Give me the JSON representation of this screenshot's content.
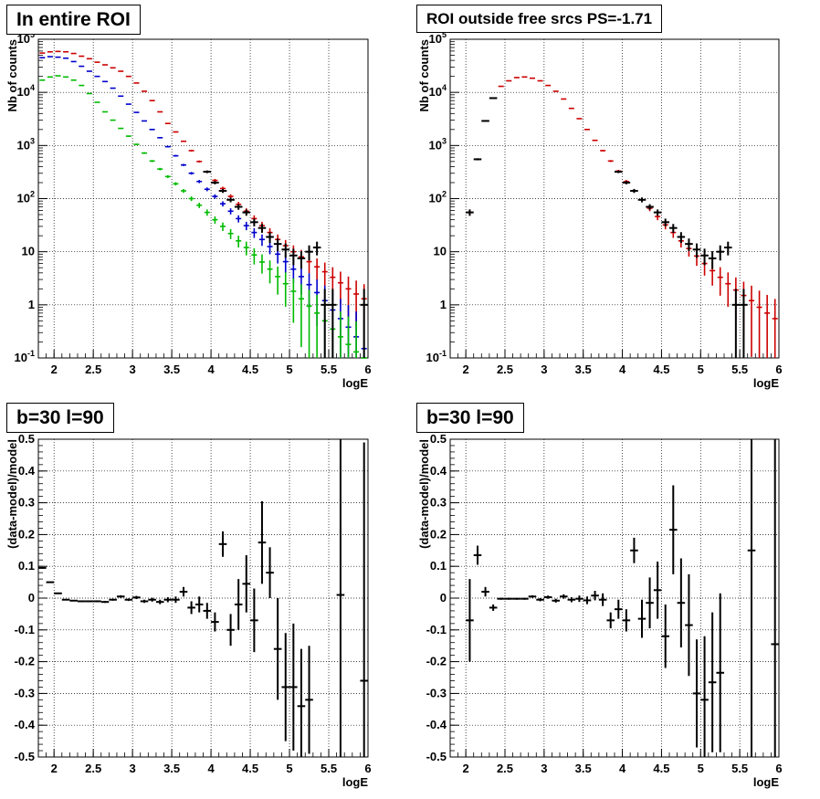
{
  "chart_data": [
    {
      "type": "scatter",
      "title": "In entire ROI",
      "xlabel": "logE",
      "ylabel": "Nb of counts",
      "xlim": [
        1.8,
        6.0
      ],
      "ylim": [
        0.1,
        100000
      ],
      "log_y": true,
      "grid": true,
      "x_ticks": [
        "2",
        "2.5",
        "3",
        "3.5",
        "4",
        "4.5",
        "5",
        "5.5",
        "6"
      ],
      "y_ticks": [
        "10^-1",
        "1",
        "10",
        "10^2",
        "10^3",
        "10^4",
        "10^5"
      ],
      "series": [
        {
          "color": "#cc0000",
          "x": [
            1.85,
            1.95,
            2.05,
            2.15,
            2.25,
            2.35,
            2.45,
            2.55,
            2.65,
            2.75,
            2.85,
            2.95,
            3.05,
            3.15,
            3.25,
            3.35,
            3.45,
            3.55,
            3.65,
            3.75,
            3.85,
            3.95,
            4.05,
            4.15,
            4.25,
            4.35,
            4.45,
            4.55,
            4.65,
            4.75,
            4.85,
            4.95,
            5.05,
            5.15,
            5.25,
            5.35,
            5.45,
            5.55,
            5.65,
            5.75,
            5.85,
            5.95
          ],
          "y": [
            55000,
            58000,
            59000,
            58000,
            54000,
            48000,
            43000,
            37000,
            33000,
            29000,
            25000,
            20000,
            15000,
            10500,
            7000,
            4300,
            2600,
            1800,
            1200,
            800,
            500,
            320,
            220,
            155,
            110,
            78,
            58,
            42,
            31,
            23,
            17,
            13,
            10,
            8,
            6.5,
            5.2,
            4.2,
            3.3,
            2.6,
            2,
            1.6,
            1.3
          ]
        },
        {
          "color": "#0000cc",
          "x": [
            1.85,
            1.95,
            2.05,
            2.15,
            2.25,
            2.35,
            2.45,
            2.55,
            2.65,
            2.75,
            2.85,
            2.95,
            3.05,
            3.15,
            3.25,
            3.35,
            3.45,
            3.55,
            3.65,
            3.75,
            3.85,
            3.95,
            4.05,
            4.15,
            4.25,
            4.35,
            4.45,
            4.55,
            4.65,
            4.75,
            4.85,
            4.95,
            5.05,
            5.15,
            5.25,
            5.35,
            5.45,
            5.55,
            5.65,
            5.75,
            5.85,
            5.95
          ],
          "y": [
            45000,
            47000,
            46000,
            44000,
            38000,
            31000,
            25000,
            20000,
            16000,
            12000,
            8500,
            6000,
            4200,
            2900,
            2000,
            1400,
            950,
            640,
            430,
            300,
            210,
            150,
            110,
            80,
            58,
            42,
            31,
            23,
            17,
            12.5,
            9,
            6.5,
            4.7,
            3.4,
            2.4,
            1.7,
            1.2,
            0.8,
            0.55,
            0.38,
            0.25,
            0.15
          ]
        },
        {
          "color": "#00bb00",
          "x": [
            1.85,
            1.95,
            2.05,
            2.15,
            2.25,
            2.35,
            2.45,
            2.55,
            2.65,
            2.75,
            2.85,
            2.95,
            3.05,
            3.15,
            3.25,
            3.35,
            3.45,
            3.55,
            3.65,
            3.75,
            3.85,
            3.95,
            4.05,
            4.15,
            4.25,
            4.35,
            4.45,
            4.55,
            4.65,
            4.75,
            4.85,
            4.95,
            5.05,
            5.15,
            5.25,
            5.35,
            5.45,
            5.55,
            5.65,
            5.75,
            5.85,
            5.95
          ],
          "y": [
            17000,
            19500,
            20500,
            19500,
            17000,
            13500,
            9500,
            6500,
            4300,
            3000,
            2100,
            1500,
            1050,
            720,
            510,
            360,
            260,
            190,
            140,
            100,
            75,
            55,
            40,
            30,
            22,
            16,
            12,
            8.7,
            6.4,
            4.7,
            3.4,
            2.5,
            1.8,
            1.3,
            0.95,
            0.7,
            0.5,
            0.35,
            0.25,
            0.18,
            0.13,
            0.1
          ]
        },
        {
          "color": "#000000",
          "x": [
            3.95,
            4.05,
            4.15,
            4.25,
            4.35,
            4.45,
            4.55,
            4.65,
            4.75,
            4.85,
            4.95,
            5.05,
            5.15,
            5.25,
            5.35,
            5.45,
            5.55,
            5.95
          ],
          "y": [
            320,
            200,
            140,
            95,
            70,
            55,
            36,
            28,
            19,
            14,
            11,
            8.5,
            7.5,
            10,
            12,
            1,
            1,
            1
          ]
        }
      ]
    },
    {
      "type": "scatter",
      "title": "ROI outside free srcs PS=-1.71",
      "xlabel": "logE",
      "ylabel": "Nb of counts",
      "xlim": [
        1.8,
        6.0
      ],
      "ylim": [
        0.1,
        100000
      ],
      "log_y": true,
      "grid": true,
      "x_ticks": [
        "2",
        "2.5",
        "3",
        "3.5",
        "4",
        "4.5",
        "5",
        "5.5",
        "6"
      ],
      "y_ticks": [
        "10^-1",
        "1",
        "10",
        "10^2",
        "10^3",
        "10^4",
        "10^5"
      ],
      "series": [
        {
          "color": "#cc0000",
          "x": [
            2.05,
            2.15,
            2.25,
            2.35,
            2.45,
            2.55,
            2.65,
            2.75,
            2.85,
            2.95,
            3.05,
            3.15,
            3.25,
            3.35,
            3.45,
            3.55,
            3.65,
            3.75,
            3.85,
            3.95,
            4.05,
            4.15,
            4.25,
            4.35,
            4.45,
            4.55,
            4.65,
            4.75,
            4.85,
            4.95,
            5.05,
            5.15,
            5.25,
            5.35,
            5.45,
            5.55,
            5.65,
            5.75,
            5.85,
            5.95
          ],
          "y": [
            55,
            550,
            2900,
            7800,
            13000,
            16500,
            19000,
            19500,
            18500,
            16500,
            13500,
            10500,
            7500,
            5000,
            3200,
            2000,
            1250,
            800,
            510,
            330,
            210,
            140,
            95,
            66,
            46,
            32,
            23,
            16,
            11.5,
            8.3,
            6,
            4.4,
            3.3,
            2.5,
            1.9,
            1.5,
            1.2,
            0.9,
            0.7,
            0.55
          ]
        },
        {
          "color": "#000000",
          "x": [
            2.05,
            2.15,
            2.25,
            2.35,
            3.95,
            4.05,
            4.15,
            4.25,
            4.35,
            4.45,
            4.55,
            4.65,
            4.75,
            4.85,
            4.95,
            5.05,
            5.15,
            5.25,
            5.35,
            5.45,
            5.55
          ],
          "y": [
            55,
            550,
            2900,
            7800,
            320,
            200,
            140,
            95,
            70,
            55,
            36,
            28,
            19,
            14,
            11,
            8.5,
            7.5,
            10,
            12,
            1,
            1
          ]
        }
      ]
    },
    {
      "type": "scatter",
      "title": "b=30 l=90",
      "xlabel": "logE",
      "ylabel": "(data-model)/model",
      "xlim": [
        1.8,
        6.0
      ],
      "ylim": [
        -0.5,
        0.5
      ],
      "grid": true,
      "x_ticks": [
        "2",
        "2.5",
        "3",
        "3.5",
        "4",
        "4.5",
        "5",
        "5.5",
        "6"
      ],
      "y_ticks": [
        "-0.5",
        "-0.4",
        "-0.3",
        "-0.2",
        "-0.1",
        "0",
        "0.1",
        "0.2",
        "0.3",
        "0.4",
        "0.5"
      ],
      "series": [
        {
          "color": "#000000",
          "x": [
            1.85,
            1.95,
            2.05,
            2.15,
            2.25,
            2.35,
            2.45,
            2.55,
            2.65,
            2.75,
            2.85,
            2.95,
            3.05,
            3.15,
            3.25,
            3.35,
            3.45,
            3.55,
            3.65,
            3.75,
            3.85,
            3.95,
            4.05,
            4.15,
            4.25,
            4.35,
            4.45,
            4.55,
            4.65,
            4.75,
            4.85,
            4.95,
            5.05,
            5.15,
            5.25,
            5.65,
            5.95
          ],
          "y": [
            0.095,
            0.05,
            0.015,
            -0.005,
            -0.008,
            -0.01,
            -0.01,
            -0.01,
            -0.012,
            -0.005,
            0.005,
            -0.005,
            0.002,
            -0.01,
            -0.005,
            -0.012,
            -0.005,
            -0.005,
            0.02,
            -0.03,
            -0.02,
            -0.04,
            -0.075,
            0.17,
            -0.1,
            -0.02,
            0.045,
            -0.07,
            0.175,
            0.08,
            -0.16,
            -0.28,
            -0.28,
            -0.34,
            -0.32,
            0.01,
            -0.26
          ],
          "err": [
            0.002,
            0.002,
            0.002,
            0.002,
            0.002,
            0.002,
            0.002,
            0.003,
            0.003,
            0.003,
            0.004,
            0.004,
            0.005,
            0.005,
            0.006,
            0.007,
            0.008,
            0.01,
            0.015,
            0.02,
            0.025,
            0.025,
            0.03,
            0.04,
            0.05,
            0.08,
            0.09,
            0.1,
            0.13,
            0.08,
            0.16,
            0.17,
            0.2,
            0.18,
            0.17,
            0.55,
            0.75
          ]
        }
      ]
    },
    {
      "type": "scatter",
      "title": "b=30 l=90",
      "xlabel": "logE",
      "ylabel": "(data-model)/model",
      "xlim": [
        1.8,
        6.0
      ],
      "ylim": [
        -0.5,
        0.5
      ],
      "grid": true,
      "x_ticks": [
        "2",
        "2.5",
        "3",
        "3.5",
        "4",
        "4.5",
        "5",
        "5.5",
        "6"
      ],
      "y_ticks": [
        "-0.5",
        "-0.4",
        "-0.3",
        "-0.2",
        "-0.1",
        "0",
        "0.1",
        "0.2",
        "0.3",
        "0.4",
        "0.5"
      ],
      "series": [
        {
          "color": "#000000",
          "x": [
            2.05,
            2.15,
            2.25,
            2.35,
            2.45,
            2.55,
            2.65,
            2.75,
            2.85,
            2.95,
            3.05,
            3.15,
            3.25,
            3.35,
            3.45,
            3.55,
            3.65,
            3.75,
            3.85,
            3.95,
            4.05,
            4.15,
            4.25,
            4.35,
            4.45,
            4.55,
            4.65,
            4.75,
            4.85,
            4.95,
            5.05,
            5.15,
            5.25,
            5.65,
            5.95
          ],
          "y": [
            -0.07,
            0.135,
            0.02,
            -0.03,
            -0.002,
            -0.002,
            -0.002,
            -0.002,
            0.005,
            -0.005,
            0.003,
            -0.008,
            0.005,
            -0.005,
            -0.002,
            -0.007,
            0.008,
            -0.005,
            -0.07,
            -0.035,
            -0.07,
            0.15,
            -0.065,
            -0.015,
            0.025,
            -0.12,
            0.215,
            -0.015,
            -0.085,
            -0.3,
            -0.32,
            -0.265,
            -0.235,
            0.15,
            -0.145
          ],
          "err": [
            0.13,
            0.03,
            0.015,
            0.01,
            0.003,
            0.003,
            0.003,
            0.003,
            0.004,
            0.005,
            0.005,
            0.006,
            0.007,
            0.008,
            0.01,
            0.012,
            0.015,
            0.02,
            0.025,
            0.03,
            0.035,
            0.04,
            0.06,
            0.08,
            0.09,
            0.1,
            0.14,
            0.14,
            0.16,
            0.17,
            0.2,
            0.22,
            0.25,
            0.65,
            0.8
          ]
        }
      ]
    }
  ]
}
